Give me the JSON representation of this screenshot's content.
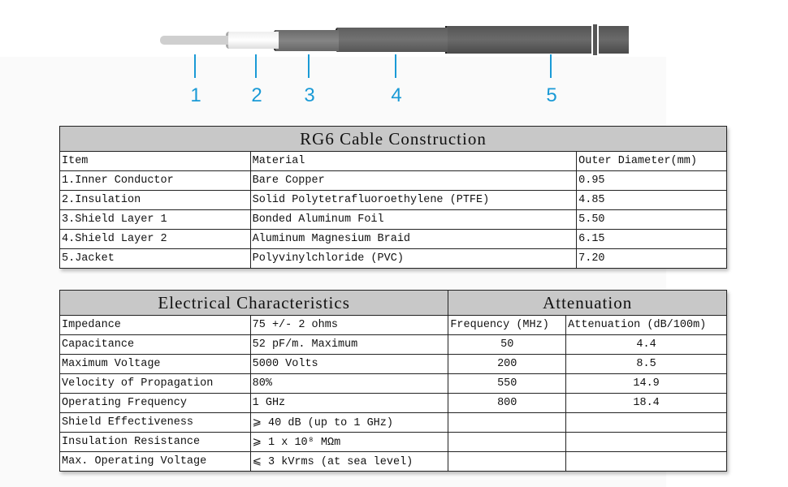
{
  "diagram": {
    "labels": [
      "1",
      "2",
      "3",
      "4",
      "5"
    ],
    "accent": "#1a9ad6"
  },
  "construction": {
    "title": "RG6 Cable Construction",
    "headers": [
      "Item",
      "Material",
      "Outer Diameter(mm)"
    ],
    "rows": [
      [
        "1.Inner Conductor",
        "Bare Copper",
        "0.95"
      ],
      [
        "2.Insulation",
        "Solid Polytetrafluoroethylene (PTFE)",
        "4.85"
      ],
      [
        "3.Shield Layer 1",
        "Bonded Aluminum Foil",
        "5.50"
      ],
      [
        "4.Shield Layer 2",
        "Aluminum Magnesium Braid",
        "6.15"
      ],
      [
        "5.Jacket",
        "Polyvinylchloride (PVC)",
        "7.20"
      ]
    ]
  },
  "electrical": {
    "title": "Electrical Characteristics",
    "rows": [
      [
        "Impedance",
        "75 +/- 2 ohms"
      ],
      [
        "Capacitance",
        "52 pF/m. Maximum"
      ],
      [
        "Maximum Voltage",
        "5000 Volts"
      ],
      [
        "Velocity of Propagation",
        "80%"
      ],
      [
        "Operating Frequency",
        "1 GHz"
      ],
      [
        "Shield Effectiveness",
        "⩾ 40 dB (up to 1 GHz)"
      ],
      [
        "Insulation Resistance",
        "⩾ 1 x 10⁸ MΩm"
      ],
      [
        "Max. Operating Voltage",
        "⩽ 3 kVrms (at sea level)"
      ]
    ]
  },
  "attenuation": {
    "title": "Attenuation",
    "headers": [
      "Frequency (MHz)",
      "Attenuation (dB/100m)"
    ],
    "rows": [
      [
        "50",
        "4.4"
      ],
      [
        "200",
        "8.5"
      ],
      [
        "550",
        "14.9"
      ],
      [
        "800",
        "18.4"
      ]
    ]
  }
}
